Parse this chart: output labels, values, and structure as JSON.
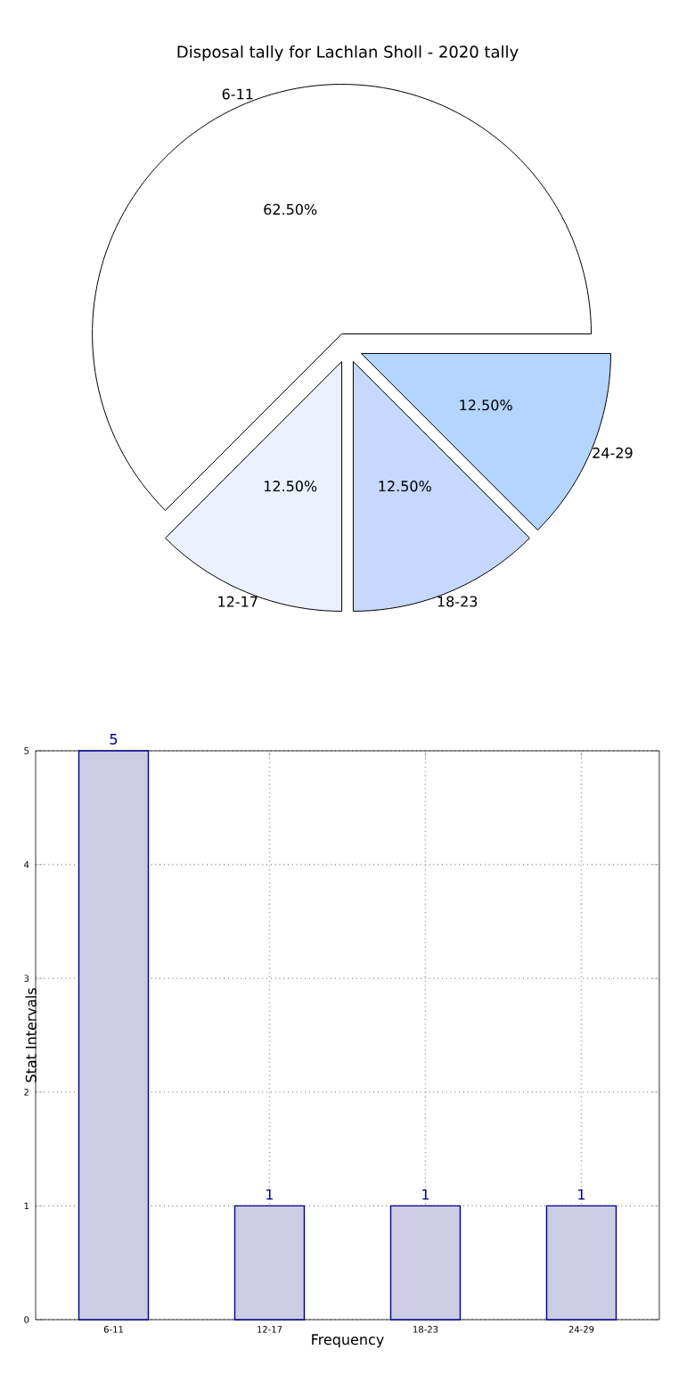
{
  "chart_data": [
    {
      "type": "pie",
      "title": "Disposal tally for Lachlan Sholl - 2020 tally",
      "categories": [
        "6-11",
        "12-17",
        "18-23",
        "24-29"
      ],
      "values": [
        62.5,
        12.5,
        12.5,
        12.5
      ],
      "colors": [
        "#ffffff",
        "#ebf1ff",
        "#c6d8ff",
        "#b4d5ff"
      ],
      "value_labels": [
        "62.50%",
        "12.50%",
        "12.50%",
        "12.50%"
      ]
    },
    {
      "type": "bar",
      "categories": [
        "6-11",
        "12-17",
        "18-23",
        "24-29"
      ],
      "values": [
        5,
        1,
        1,
        1
      ],
      "color": "#ccccE4",
      "ylim": [
        0,
        5
      ],
      "yticks": [
        0,
        1,
        2,
        3,
        4,
        5
      ],
      "grid": true,
      "xlabel": "Frequency",
      "ylabel": "Stat Intervals",
      "data_labels": true
    }
  ]
}
